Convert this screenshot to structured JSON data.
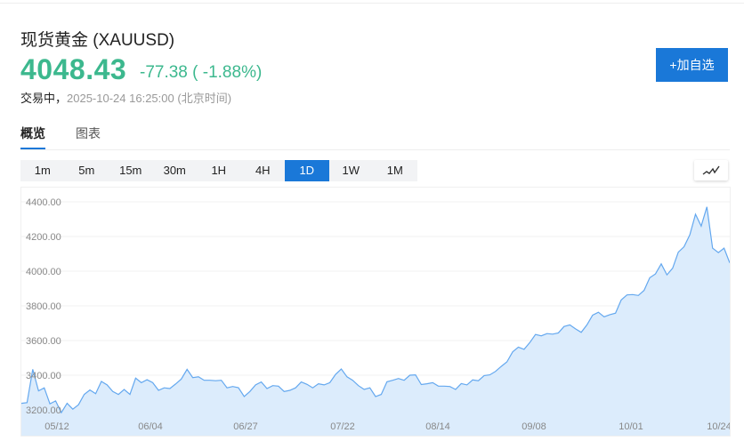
{
  "header": {
    "title": "现货黄金 (XAUUSD)",
    "price": "4048.43",
    "change": "-77.38 ( -1.88%)",
    "status": "交易中，",
    "datetime": "2025-10-24 16:25:00",
    "timezone": "(北京时间)",
    "add_button": "+加自选"
  },
  "tabs": [
    {
      "label": "概览",
      "active": true
    },
    {
      "label": "图表",
      "active": false
    }
  ],
  "periods": [
    {
      "label": "1m"
    },
    {
      "label": "5m"
    },
    {
      "label": "15m"
    },
    {
      "label": "30m"
    },
    {
      "label": "1H"
    },
    {
      "label": "4H"
    },
    {
      "label": "1D",
      "active": true
    },
    {
      "label": "1W"
    },
    {
      "label": "1M"
    }
  ],
  "chart_type_icon": "line-chart-icon",
  "colors": {
    "up_down": "#3cb88e",
    "accent": "#1a78d8",
    "line": "#64a8ef",
    "fill": "#dcecfc"
  },
  "chart_data": {
    "type": "area",
    "ylim": [
      3200,
      4400
    ],
    "yticks": [
      "4400.00",
      "4200.00",
      "4000.00",
      "3800.00",
      "3600.00",
      "3400.00",
      "3200.00"
    ],
    "xticks": [
      "05/12",
      "06/04",
      "06/27",
      "07/22",
      "08/14",
      "09/08",
      "10/01",
      "10/24"
    ],
    "grid": true,
    "values": [
      3238,
      3242,
      3434,
      3310,
      3327,
      3235,
      3252,
      3184,
      3238,
      3204,
      3230,
      3289,
      3315,
      3294,
      3364,
      3344,
      3306,
      3289,
      3318,
      3289,
      3383,
      3357,
      3374,
      3357,
      3313,
      3327,
      3323,
      3349,
      3378,
      3434,
      3386,
      3391,
      3371,
      3371,
      3368,
      3371,
      3327,
      3335,
      3328,
      3277,
      3306,
      3344,
      3361,
      3323,
      3340,
      3337,
      3306,
      3313,
      3327,
      3361,
      3347,
      3327,
      3351,
      3344,
      3357,
      3405,
      3436,
      3391,
      3371,
      3340,
      3318,
      3327,
      3277,
      3289,
      3362,
      3371,
      3381,
      3371,
      3400,
      3402,
      3346,
      3351,
      3357,
      3337,
      3337,
      3335,
      3318,
      3352,
      3344,
      3373,
      3368,
      3398,
      3402,
      3422,
      3451,
      3477,
      3535,
      3562,
      3549,
      3588,
      3635,
      3627,
      3640,
      3637,
      3644,
      3681,
      3690,
      3667,
      3647,
      3690,
      3746,
      3763,
      3737,
      3749,
      3758,
      3834,
      3863,
      3865,
      3860,
      3889,
      3962,
      3984,
      4042,
      3979,
      4017,
      4110,
      4141,
      4209,
      4328,
      4260,
      4371,
      4133,
      4107,
      4133,
      4048
    ]
  }
}
